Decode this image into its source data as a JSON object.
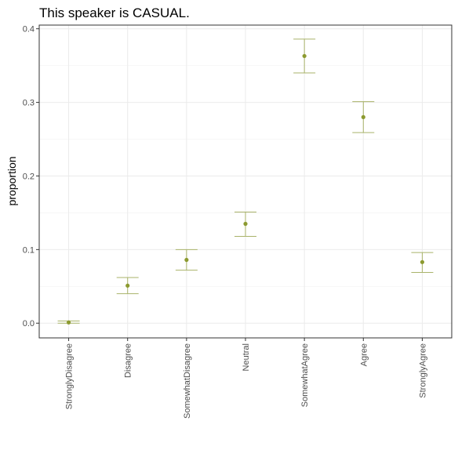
{
  "chart_data": {
    "type": "scatter",
    "title": "This speaker is CASUAL.",
    "xlabel": "",
    "ylabel": "proportion",
    "categories": [
      "StronglyDisagree",
      "Disagree",
      "SomewhatDisagree",
      "Neutral",
      "SomewhatAgree",
      "Agree",
      "StronglyAgree"
    ],
    "series": [
      {
        "values": [
          0.001,
          0.051,
          0.086,
          0.135,
          0.363,
          0.28,
          0.083
        ],
        "lower": [
          0.0,
          0.04,
          0.072,
          0.118,
          0.34,
          0.259,
          0.069
        ],
        "upper": [
          0.003,
          0.062,
          0.1,
          0.151,
          0.386,
          0.301,
          0.096
        ]
      }
    ],
    "yticks": [
      "0.0",
      "0.1",
      "0.2",
      "0.3",
      "0.4"
    ],
    "ylim": [
      -0.02,
      0.405
    ],
    "grid": true,
    "color": "#8c9a2f"
  }
}
